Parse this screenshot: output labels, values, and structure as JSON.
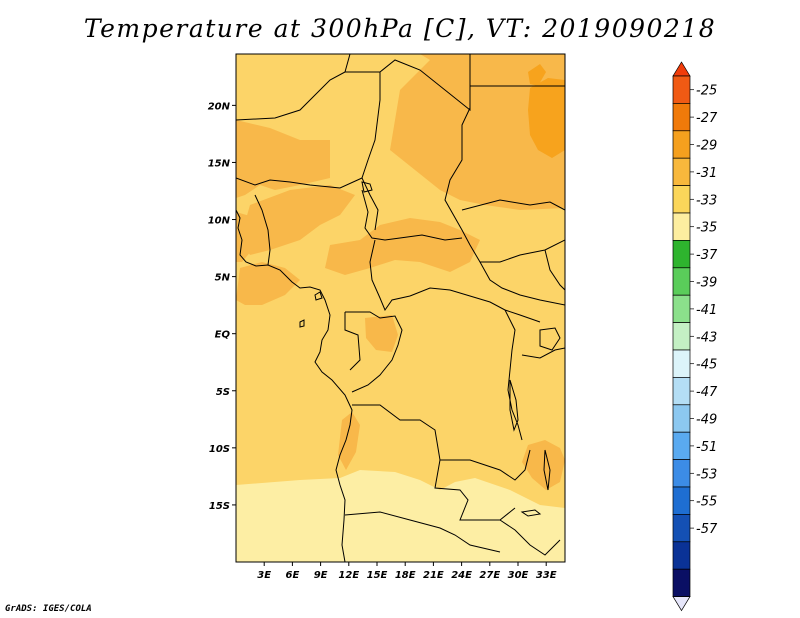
{
  "title": "Temperature at 300hPa [C], VT: 2019090218",
  "credit": "GrADS: IGES/COLA",
  "map": {
    "lat_ticks": [
      "20N",
      "15N",
      "10N",
      "5N",
      "EQ",
      "5S",
      "10S",
      "15S"
    ],
    "lon_ticks": [
      "3E",
      "6E",
      "9E",
      "12E",
      "15E",
      "18E",
      "21E",
      "24E",
      "27E",
      "30E",
      "33E"
    ],
    "lon_range": [
      0,
      35
    ],
    "lat_range": [
      -20,
      24.5
    ]
  },
  "colorbar": {
    "labels": [
      "-25",
      "-27",
      "-29",
      "-31",
      "-33",
      "-35",
      "-37",
      "-39",
      "-41",
      "-43",
      "-45",
      "-47",
      "-49",
      "-51",
      "-53",
      "-55",
      "-57"
    ],
    "colors": [
      "#f05a14",
      "#f07a0a",
      "#f5a01e",
      "#f8b83c",
      "#fbd65a",
      "#fdeea0",
      "#2eb42e",
      "#5acd5a",
      "#8be08b",
      "#c4f0c4",
      "#dcf4fa",
      "#b4def5",
      "#8cc8f0",
      "#5aaaf0",
      "#3c8ce6",
      "#1e6ed2",
      "#1450b4",
      "#0a3296",
      "#0a0f64"
    ],
    "top_arrow_color": "#f03c0a",
    "bottom_arrow_color": "#e6e6fa"
  },
  "fill_colors": {
    "bin_minus27": "#f7a31d",
    "bin_minus29": "#f8b84a",
    "bin_minus31": "#fcd468",
    "bin_minus33": "#fdeea4",
    "coastline": "#000000"
  }
}
